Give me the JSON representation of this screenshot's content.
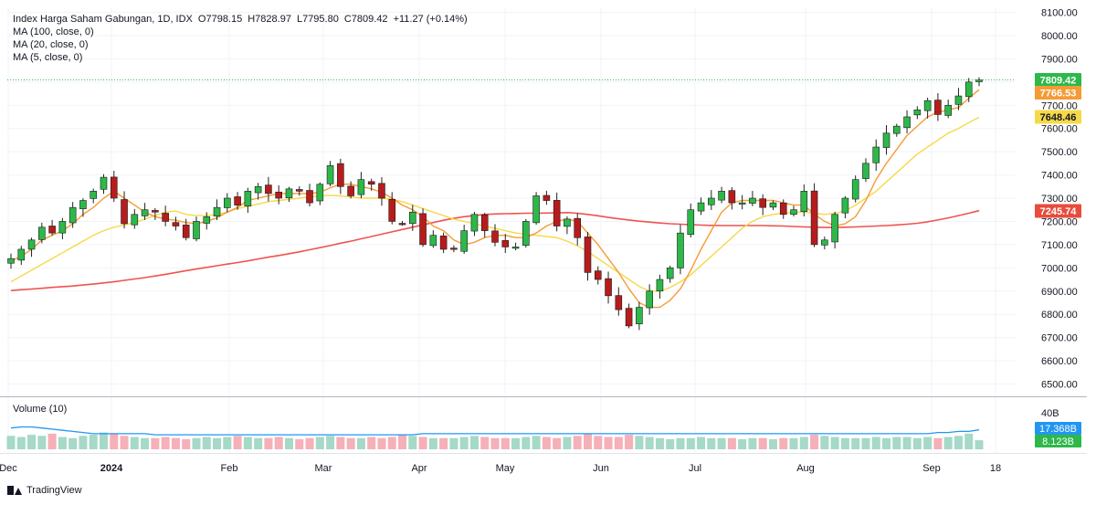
{
  "legend": {
    "title": "Index Harga Saham Gabungan, 1D, IDX",
    "open": "O7798.15",
    "high": "H7828.97",
    "low": "L7795.80",
    "close": "C7809.42",
    "change": "+11.27 (+0.14%)",
    "ma100": "MA (100, close, 0)",
    "ma20": "MA (20, close, 0)",
    "ma5": "MA (5, close, 0)"
  },
  "volume_pane": {
    "label": "Volume (10)"
  },
  "footer": {
    "brand": "TradingView"
  },
  "colors": {
    "up": "#26a69a",
    "up_candle": "#2db84a",
    "down": "#b71c1c",
    "ma100": "#ef5350",
    "ma20": "#f5d94a",
    "ma5": "#f59b35",
    "vol_up": "#a6d9c7",
    "vol_down": "#f5b0b8",
    "vol_ma": "#2196f3",
    "price_last": "#2db84a"
  },
  "chart_data": {
    "type": "candlestick",
    "symbol": "Index Harga Saham Gabungan, 1D, IDX",
    "y_axis": {
      "ticks": [
        "8100.00",
        "8000.00",
        "7900.00",
        "7800.00",
        "7700.00",
        "7600.00",
        "7500.00",
        "7400.00",
        "7300.00",
        "7200.00",
        "7100.00",
        "7000.00",
        "6900.00",
        "6800.00",
        "6700.00",
        "6600.00",
        "6500.00"
      ],
      "range": [
        6470,
        8110
      ]
    },
    "x_axis": {
      "ticks": [
        "Dec",
        "2024",
        "Feb",
        "Mar",
        "Apr",
        "May",
        "Jun",
        "Jul",
        "Aug",
        "Sep",
        "18"
      ]
    },
    "price_labels": [
      {
        "name": "close",
        "value": "7809.42",
        "color": "#2db84a"
      },
      {
        "name": "ma5",
        "value": "7766.53",
        "color": "#f59b35"
      },
      {
        "name": "ma20",
        "value": "7648.46",
        "color": "#f5d94a"
      },
      {
        "name": "ma100",
        "value": "7245.74",
        "color": "#e74c3c"
      }
    ],
    "volume_axis": {
      "ticks": [
        "40B"
      ],
      "max": 40
    },
    "volume_labels": [
      {
        "name": "volume-ma",
        "value": "17.368B",
        "color": "#2196f3"
      },
      {
        "name": "volume",
        "value": "8.123B",
        "color": "#2db84a"
      }
    ],
    "close_path": [
      7040,
      7080,
      7120,
      7175,
      7150,
      7200,
      7260,
      7290,
      7330,
      7390,
      7300,
      7190,
      7230,
      7250,
      7240,
      7200,
      7180,
      7130,
      7200,
      7220,
      7260,
      7300,
      7270,
      7330,
      7350,
      7320,
      7300,
      7340,
      7330,
      7280,
      7360,
      7440,
      7350,
      7310,
      7380,
      7360,
      7300,
      7200,
      7190,
      7240,
      7100,
      7140,
      7080,
      7080,
      7160,
      7230,
      7160,
      7110,
      7090,
      7090,
      7200,
      7310,
      7290,
      7180,
      7210,
      7130,
      6980,
      6950,
      6880,
      6820,
      6750,
      6830,
      6900,
      6950,
      7000,
      7150,
      7250,
      7280,
      7300,
      7330,
      7280,
      7280,
      7300,
      7260,
      7280,
      7230,
      7250,
      7330,
      7100,
      7120,
      7230,
      7300,
      7380,
      7450,
      7520,
      7580,
      7610,
      7650,
      7680,
      7720,
      7660,
      7700,
      7740,
      7800,
      7809
    ],
    "series": [
      {
        "name": "MA (100, close, 0)",
        "values": [
          6902,
          6906,
          6909,
          6912,
          6916,
          6919,
          6922,
          6926,
          6930,
          6935,
          6940,
          6946,
          6952,
          6958,
          6965,
          6972,
          6980,
          6988,
          6995,
          7002,
          7009,
          7016,
          7023,
          7030,
          7038,
          7046,
          7053,
          7061,
          7069,
          7078,
          7087,
          7096,
          7106,
          7115,
          7125,
          7135,
          7145,
          7155,
          7165,
          7175,
          7185,
          7195,
          7205,
          7213,
          7220,
          7225,
          7230,
          7232,
          7233,
          7234,
          7235,
          7235,
          7236,
          7237,
          7238,
          7235,
          7230,
          7224,
          7217,
          7211,
          7206,
          7201,
          7197,
          7193,
          7190,
          7188,
          7186,
          7184,
          7183,
          7182,
          7182,
          7182,
          7182,
          7182,
          7181,
          7180,
          7178,
          7176,
          7175,
          7174,
          7174,
          7175,
          7176,
          7178,
          7180,
          7182,
          7185,
          7188,
          7192,
          7198,
          7206,
          7215,
          7225,
          7235,
          7246
        ]
      },
      {
        "name": "MA (20, close, 0)",
        "values": [
          6940,
          6965,
          6990,
          7015,
          7040,
          7065,
          7090,
          7115,
          7140,
          7160,
          7175,
          7185,
          7195,
          7210,
          7225,
          7240,
          7245,
          7230,
          7225,
          7225,
          7230,
          7240,
          7255,
          7265,
          7275,
          7285,
          7290,
          7295,
          7300,
          7305,
          7310,
          7312,
          7310,
          7305,
          7300,
          7300,
          7300,
          7295,
          7285,
          7270,
          7255,
          7240,
          7225,
          7210,
          7200,
          7190,
          7180,
          7170,
          7160,
          7150,
          7145,
          7140,
          7135,
          7130,
          7115,
          7095,
          7070,
          7040,
          7010,
          6980,
          6950,
          6920,
          6900,
          6900,
          6915,
          6940,
          6970,
          7010,
          7050,
          7090,
          7130,
          7170,
          7200,
          7220,
          7230,
          7235,
          7240,
          7240,
          7235,
          7230,
          7235,
          7245,
          7270,
          7300,
          7330,
          7370,
          7410,
          7450,
          7490,
          7520,
          7550,
          7580,
          7600,
          7625,
          7648
        ]
      },
      {
        "name": "MA (5, close, 0)",
        "values": [
          7030,
          7050,
          7080,
          7120,
          7140,
          7160,
          7190,
          7230,
          7260,
          7300,
          7330,
          7300,
          7270,
          7240,
          7220,
          7210,
          7205,
          7195,
          7190,
          7200,
          7215,
          7240,
          7260,
          7290,
          7300,
          7310,
          7320,
          7320,
          7320,
          7320,
          7325,
          7345,
          7360,
          7360,
          7350,
          7340,
          7325,
          7300,
          7270,
          7250,
          7220,
          7180,
          7160,
          7120,
          7100,
          7110,
          7130,
          7140,
          7140,
          7130,
          7130,
          7150,
          7180,
          7200,
          7210,
          7200,
          7150,
          7100,
          7040,
          6980,
          6910,
          6850,
          6830,
          6830,
          6860,
          6910,
          6990,
          7080,
          7160,
          7240,
          7280,
          7290,
          7290,
          7290,
          7290,
          7280,
          7270,
          7270,
          7230,
          7200,
          7180,
          7190,
          7220,
          7290,
          7380,
          7450,
          7510,
          7570,
          7610,
          7650,
          7670,
          7680,
          7690,
          7730,
          7767
        ]
      }
    ],
    "volume": [
      12,
      11,
      13,
      12,
      14,
      11,
      10,
      12,
      13,
      15,
      14,
      12,
      11,
      10,
      10,
      11,
      10,
      9,
      10,
      11,
      10,
      11,
      12,
      11,
      10,
      10,
      11,
      10,
      9,
      10,
      11,
      12,
      11,
      10,
      10,
      11,
      10,
      11,
      13,
      12,
      11,
      10,
      10,
      10,
      11,
      12,
      11,
      10,
      10,
      10,
      11,
      12,
      11,
      10,
      11,
      12,
      14,
      12,
      11,
      11,
      13,
      12,
      11,
      10,
      9,
      10,
      10,
      11,
      10,
      10,
      10,
      9,
      10,
      10,
      9,
      10,
      10,
      11,
      13,
      12,
      11,
      10,
      10,
      10,
      11,
      10,
      11,
      11,
      10,
      11,
      10,
      11,
      12,
      14,
      8.1
    ],
    "volume_ma": [
      19,
      20,
      20,
      19,
      18,
      17,
      16,
      15,
      14,
      14,
      14,
      14,
      14,
      14,
      13,
      13,
      13,
      13,
      13,
      13,
      13,
      13,
      13,
      13,
      13,
      13,
      13,
      13,
      13,
      13,
      13,
      13,
      13,
      13,
      13,
      13,
      13,
      13,
      13,
      13,
      14,
      14,
      14,
      14,
      14,
      14,
      14,
      14,
      14,
      14,
      14,
      14,
      14,
      14,
      14,
      14,
      14,
      14,
      14,
      14,
      14,
      14,
      14,
      14,
      14,
      14,
      14,
      14,
      14,
      14,
      14,
      14,
      14,
      14,
      14,
      14,
      14,
      14,
      14,
      14,
      14,
      14,
      14,
      14,
      14,
      14,
      14,
      14,
      14,
      14,
      15,
      15,
      16,
      16,
      17.4
    ]
  }
}
